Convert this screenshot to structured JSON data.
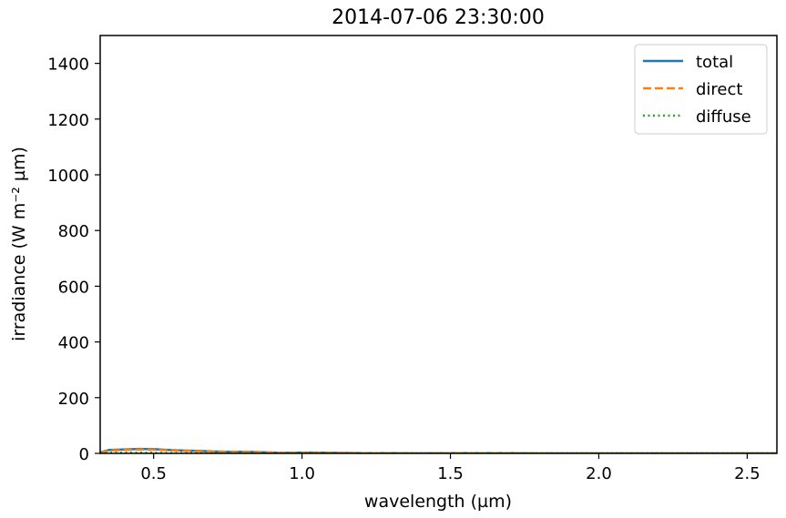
{
  "chart_data": {
    "type": "line",
    "title": "2014-07-06 23:30:00",
    "xlabel": "wavelength (µm)",
    "ylabel": "irradiance (W m⁻² µm)",
    "xlim": [
      0.32,
      2.6
    ],
    "ylim": [
      0,
      1500
    ],
    "xticks": [
      0.5,
      1.0,
      1.5,
      2.0,
      2.5
    ],
    "xtick_labels": [
      "0.5",
      "1.0",
      "1.5",
      "2.0",
      "2.5"
    ],
    "yticks": [
      0,
      200,
      400,
      600,
      800,
      1000,
      1200,
      1400
    ],
    "ytick_labels": [
      "0",
      "200",
      "400",
      "600",
      "800",
      "1000",
      "1200",
      "1400"
    ],
    "grid": false,
    "legend_position": "top-right",
    "series": [
      {
        "name": "total",
        "color": "#1f77b4",
        "style": "solid",
        "x": [
          0.32,
          0.35,
          0.4,
          0.45,
          0.5,
          0.55,
          0.6,
          0.65,
          0.7,
          0.75,
          0.8,
          0.85,
          0.9,
          0.95,
          1.0,
          1.05,
          1.1,
          1.2,
          1.3,
          1.4,
          1.5,
          1.6,
          1.7,
          1.8,
          2.0,
          2.2,
          2.4,
          2.6
        ],
        "y": [
          3,
          12,
          14,
          16,
          15,
          12,
          10,
          9,
          7,
          6,
          6,
          5,
          3,
          2,
          3,
          3,
          2,
          1,
          1,
          0,
          1,
          1,
          1,
          0,
          0,
          0,
          0,
          0
        ]
      },
      {
        "name": "direct",
        "color": "#ff7f0e",
        "style": "dashed",
        "x": [
          0.32,
          0.35,
          0.4,
          0.45,
          0.5,
          0.55,
          0.6,
          0.65,
          0.7,
          0.75,
          0.8,
          0.85,
          0.9,
          0.95,
          1.0,
          1.05,
          1.1,
          1.2,
          1.3,
          1.4,
          1.5,
          1.6,
          1.7,
          1.8,
          2.0,
          2.2,
          2.4,
          2.6
        ],
        "y": [
          2,
          10,
          12,
          14,
          13,
          11,
          9,
          8,
          6,
          5,
          5,
          4,
          3,
          2,
          2,
          2,
          2,
          1,
          1,
          0,
          1,
          1,
          1,
          0,
          0,
          0,
          0,
          0
        ]
      },
      {
        "name": "diffuse",
        "color": "#2ca02c",
        "style": "dotted",
        "x": [
          0.32,
          0.35,
          0.4,
          0.45,
          0.5,
          0.55,
          0.6,
          0.65,
          0.7,
          0.75,
          0.8,
          0.85,
          0.9,
          0.95,
          1.0,
          1.05,
          1.1,
          1.2,
          1.3,
          1.4,
          1.5,
          1.6,
          1.7,
          1.8,
          2.0,
          2.2,
          2.4,
          2.6
        ],
        "y": [
          1,
          2,
          2,
          2,
          2,
          1,
          1,
          1,
          1,
          1,
          1,
          1,
          0,
          0,
          1,
          1,
          0,
          0,
          0,
          0,
          0,
          0,
          0,
          0,
          0,
          0,
          0,
          0
        ]
      }
    ]
  }
}
